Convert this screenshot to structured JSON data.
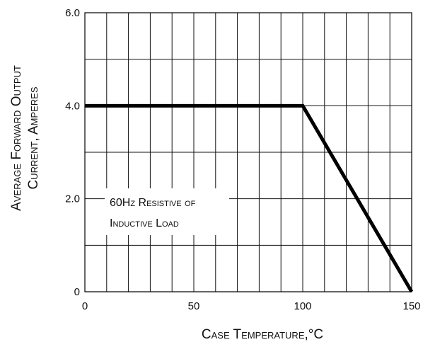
{
  "chart_data": {
    "type": "line",
    "title": "",
    "xlabel": "Case Temperature,°C",
    "ylabel_lines": [
      "Average Forward Output",
      "Current, Amperes"
    ],
    "xlim": [
      0,
      150
    ],
    "ylim": [
      0,
      6.0
    ],
    "x_ticks": [
      "0",
      "50",
      "100",
      "150"
    ],
    "x_tick_values": [
      0,
      50,
      100,
      150
    ],
    "y_ticks": [
      "0",
      "2.0",
      "4.0",
      "6.0"
    ],
    "y_tick_values": [
      0,
      2,
      4,
      6
    ],
    "grid": true,
    "x_grid_step": 10,
    "y_grid_step": 1,
    "series": [
      {
        "x": [
          0,
          100,
          150
        ],
        "y": [
          4.0,
          4.0,
          0
        ],
        "color": "#000000"
      }
    ],
    "annotation_lines": [
      "60Hz Resistive of",
      "Inductive Load"
    ]
  }
}
